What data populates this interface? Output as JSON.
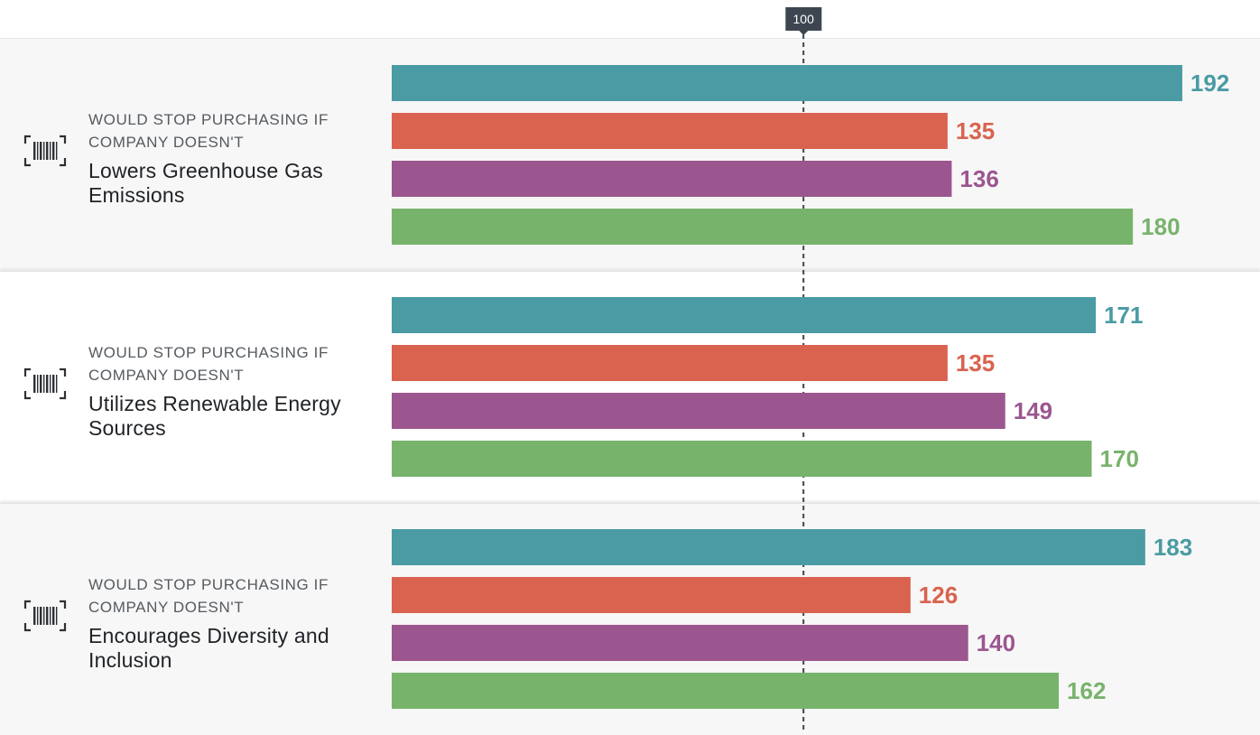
{
  "chart_data": {
    "type": "bar",
    "orientation": "horizontal",
    "reference_line": {
      "value": 100,
      "label": "100"
    },
    "x_domain": [
      0,
      200
    ],
    "categories": [
      {
        "kicker": "WOULD STOP PURCHASING IF COMPANY DOESN'T",
        "statement": "Lowers Greenhouse Gas Emissions",
        "icon": "barcode-icon"
      },
      {
        "kicker": "WOULD STOP PURCHASING IF COMPANY DOESN'T",
        "statement": "Utilizes Renewable Energy Sources",
        "icon": "barcode-icon"
      },
      {
        "kicker": "WOULD STOP PURCHASING IF COMPANY DOESN'T",
        "statement": "Encourages Diversity and Inclusion",
        "icon": "barcode-icon"
      }
    ],
    "series": [
      {
        "color": "#4a9ba3",
        "values": [
          192,
          171,
          183
        ]
      },
      {
        "color": "#d9634f",
        "values": [
          135,
          135,
          126
        ]
      },
      {
        "color": "#9b568f",
        "values": [
          136,
          149,
          140
        ]
      },
      {
        "color": "#78b36c",
        "values": [
          180,
          170,
          162
        ]
      }
    ],
    "grid": false,
    "legend": "none"
  }
}
